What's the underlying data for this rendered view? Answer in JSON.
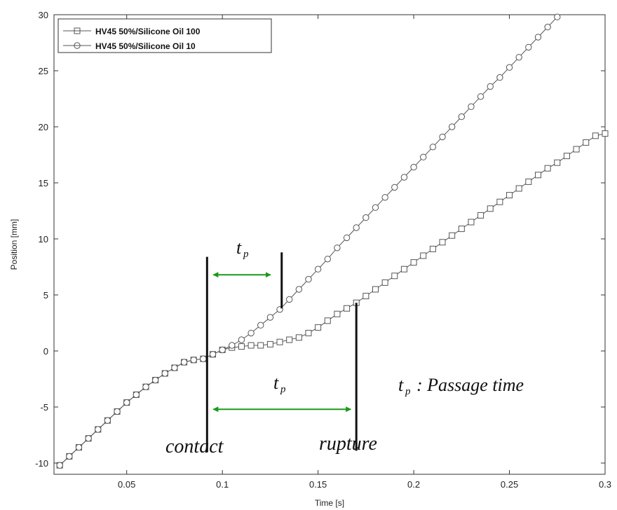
{
  "chart_data": {
    "type": "line",
    "xlabel": "Time [s]",
    "ylabel": "Position [mm]",
    "xlim": [
      0.012,
      0.3
    ],
    "ylim": [
      -11,
      30
    ],
    "xticks": [
      0.05,
      0.1,
      0.15,
      0.2,
      0.25,
      0.3
    ],
    "xtick_labels": [
      "0.05",
      "0.1",
      "0.15",
      "0.2",
      "0.25",
      "0.3"
    ],
    "yticks": [
      -10,
      -5,
      0,
      5,
      10,
      15,
      20,
      25,
      30
    ],
    "ytick_labels": [
      "-10",
      "-5",
      "0",
      "5",
      "10",
      "15",
      "20",
      "25",
      "30"
    ],
    "grid": false,
    "legend_position": "top-left",
    "series": [
      {
        "name": "HV45 50%/Silicone Oil 100",
        "marker": "square",
        "color": "#555555",
        "x": [
          0.015,
          0.02,
          0.025,
          0.03,
          0.035,
          0.04,
          0.045,
          0.05,
          0.055,
          0.06,
          0.065,
          0.07,
          0.075,
          0.08,
          0.085,
          0.09,
          0.095,
          0.1,
          0.105,
          0.11,
          0.115,
          0.12,
          0.125,
          0.13,
          0.135,
          0.14,
          0.145,
          0.15,
          0.155,
          0.16,
          0.165,
          0.17,
          0.175,
          0.18,
          0.185,
          0.19,
          0.195,
          0.2,
          0.205,
          0.21,
          0.215,
          0.22,
          0.225,
          0.23,
          0.235,
          0.24,
          0.245,
          0.25,
          0.255,
          0.26,
          0.265,
          0.27,
          0.275,
          0.28,
          0.285,
          0.29,
          0.295,
          0.3
        ],
        "y": [
          -10.2,
          -9.4,
          -8.6,
          -7.8,
          -7.0,
          -6.2,
          -5.4,
          -4.6,
          -3.9,
          -3.2,
          -2.6,
          -2.0,
          -1.5,
          -1.0,
          -0.8,
          -0.7,
          -0.3,
          0.1,
          0.3,
          0.4,
          0.5,
          0.5,
          0.6,
          0.8,
          1.0,
          1.2,
          1.6,
          2.1,
          2.7,
          3.3,
          3.8,
          4.3,
          4.9,
          5.5,
          6.1,
          6.7,
          7.3,
          7.9,
          8.5,
          9.1,
          9.7,
          10.3,
          10.9,
          11.5,
          12.1,
          12.7,
          13.3,
          13.9,
          14.5,
          15.1,
          15.7,
          16.3,
          16.8,
          17.4,
          18.0,
          18.6,
          19.2,
          19.4
        ]
      },
      {
        "name": "HV45 50%/Silicone Oil 10",
        "marker": "circle",
        "color": "#555555",
        "x": [
          0.015,
          0.02,
          0.025,
          0.03,
          0.035,
          0.04,
          0.045,
          0.05,
          0.055,
          0.06,
          0.065,
          0.07,
          0.075,
          0.08,
          0.085,
          0.09,
          0.095,
          0.1,
          0.105,
          0.11,
          0.115,
          0.12,
          0.125,
          0.13,
          0.135,
          0.14,
          0.145,
          0.15,
          0.155,
          0.16,
          0.165,
          0.17,
          0.175,
          0.18,
          0.185,
          0.19,
          0.195,
          0.2,
          0.205,
          0.21,
          0.215,
          0.22,
          0.225,
          0.23,
          0.235,
          0.24,
          0.245,
          0.25,
          0.255,
          0.26,
          0.265,
          0.27,
          0.275
        ],
        "y": [
          -10.2,
          -9.4,
          -8.6,
          -7.8,
          -7.0,
          -6.2,
          -5.4,
          -4.6,
          -3.9,
          -3.2,
          -2.6,
          -2.0,
          -1.5,
          -1.0,
          -0.8,
          -0.7,
          -0.3,
          0.1,
          0.5,
          1.0,
          1.6,
          2.3,
          3.0,
          3.7,
          4.6,
          5.5,
          6.4,
          7.3,
          8.2,
          9.2,
          10.1,
          11.0,
          11.9,
          12.8,
          13.7,
          14.6,
          15.5,
          16.4,
          17.3,
          18.2,
          19.1,
          20.0,
          20.9,
          21.8,
          22.7,
          23.6,
          24.4,
          25.3,
          26.2,
          27.1,
          28.0,
          28.9,
          29.8
        ]
      }
    ],
    "annotations": {
      "contact_label": "contact",
      "rupture_label": "rupture",
      "tp_main": "t",
      "tp_sub": "p",
      "passage_suffix": ": Passage time",
      "contact_x": 0.092,
      "contact_ymin": -9.0,
      "contact_ymax": 8.4,
      "rupture_oil10_x": 0.131,
      "rupture_oil10_ymin": 3.8,
      "rupture_oil10_ymax": 8.8,
      "rupture_oil100_x": 0.17,
      "rupture_oil100_ymin": -8.9,
      "rupture_oil100_ymax": 4.3,
      "arrow_color": "#1a9a1a"
    }
  }
}
